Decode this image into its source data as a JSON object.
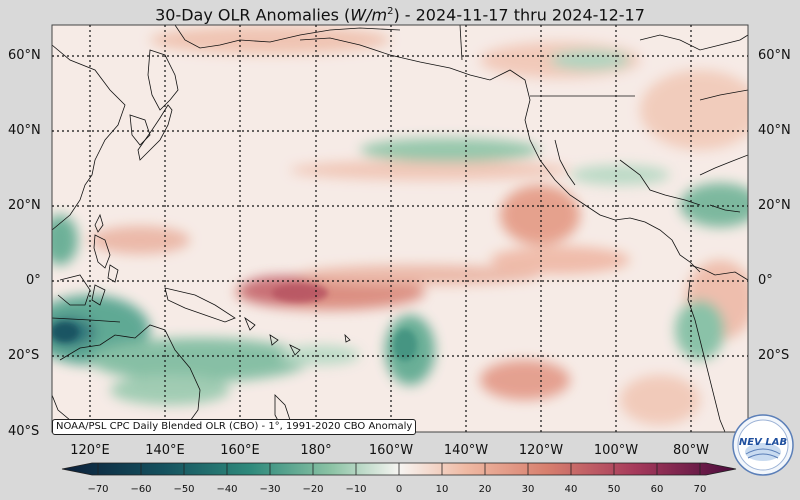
{
  "title": {
    "prefix": "30-Day OLR Anomalies (",
    "var_main": "W/m",
    "var_sup": "2",
    "suffix": ") - 2024-11-17 thru 2024-12-17"
  },
  "map": {
    "lat_labels": [
      "60°N",
      "40°N",
      "20°N",
      "0°",
      "20°S",
      "40°S"
    ],
    "lon_labels": [
      "120°E",
      "140°E",
      "160°E",
      "180°",
      "160°W",
      "140°W",
      "120°W",
      "100°W",
      "80°W"
    ],
    "credit": "NOAA/PSL CPC Daily Blended OLR (CBO) - 1°, 1991-2020 CBO Anomaly",
    "logo_text": "NEV LAB"
  },
  "colorbar": {
    "ticks": [
      "−70",
      "−60",
      "−50",
      "−40",
      "−30",
      "−20",
      "−10",
      "0",
      "10",
      "20",
      "30",
      "40",
      "50",
      "60",
      "70"
    ],
    "colors": {
      "neg_extreme": "#0b1f3a",
      "neg_strong": "#1e6b72",
      "neg_mid": "#3f9a86",
      "neg_weak": "#b9dcc7",
      "zero": "#f7f5f2",
      "pos_weak": "#f0c2ad",
      "pos_mid": "#db8a73",
      "pos_strong": "#b64a58",
      "pos_extreme": "#4a0b3d"
    }
  }
}
